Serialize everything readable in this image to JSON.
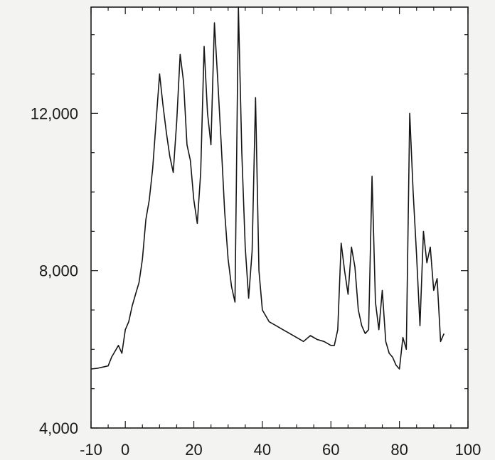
{
  "chart_data": {
    "type": "line",
    "title": "",
    "xlabel": "",
    "ylabel": "",
    "xlim": [
      -10,
      100
    ],
    "ylim": [
      4000,
      14700
    ],
    "x_ticks": [
      -10,
      0,
      20,
      40,
      60,
      80,
      100
    ],
    "x_tick_labels": [
      "-10",
      "0",
      "20",
      "40",
      "60",
      "80",
      "100"
    ],
    "y_ticks": [
      4000,
      8000,
      12000
    ],
    "y_tick_labels": [
      "4,000",
      "8,000",
      "12,000"
    ],
    "grid": false,
    "legend": "none",
    "line_color": "#151515",
    "series": [
      {
        "points": [
          [
            -10,
            5500
          ],
          [
            -8,
            5520
          ],
          [
            -6,
            5560
          ],
          [
            -5,
            5580
          ],
          [
            -4,
            5800
          ],
          [
            -3,
            5950
          ],
          [
            -2,
            6100
          ],
          [
            -1,
            5900
          ],
          [
            0,
            6500
          ],
          [
            1,
            6700
          ],
          [
            2,
            7100
          ],
          [
            3,
            7400
          ],
          [
            4,
            7700
          ],
          [
            5,
            8300
          ],
          [
            6,
            9300
          ],
          [
            7,
            9800
          ],
          [
            8,
            10600
          ],
          [
            9,
            11800
          ],
          [
            10,
            13000
          ],
          [
            11,
            12200
          ],
          [
            12,
            11500
          ],
          [
            13,
            10900
          ],
          [
            14,
            10500
          ],
          [
            15,
            11800
          ],
          [
            16,
            13500
          ],
          [
            17,
            12800
          ],
          [
            18,
            11200
          ],
          [
            19,
            10800
          ],
          [
            20,
            9800
          ],
          [
            21,
            9200
          ],
          [
            22,
            10500
          ],
          [
            23,
            13700
          ],
          [
            24,
            12000
          ],
          [
            25,
            11200
          ],
          [
            26,
            14300
          ],
          [
            27,
            12800
          ],
          [
            28,
            11200
          ],
          [
            29,
            9500
          ],
          [
            30,
            8300
          ],
          [
            31,
            7600
          ],
          [
            32,
            7200
          ],
          [
            33,
            14700
          ],
          [
            34,
            11000
          ],
          [
            35,
            8600
          ],
          [
            36,
            7300
          ],
          [
            37,
            8500
          ],
          [
            38,
            12400
          ],
          [
            39,
            8000
          ],
          [
            40,
            7000
          ],
          [
            42,
            6700
          ],
          [
            44,
            6600
          ],
          [
            46,
            6500
          ],
          [
            48,
            6400
          ],
          [
            50,
            6300
          ],
          [
            52,
            6200
          ],
          [
            54,
            6350
          ],
          [
            56,
            6250
          ],
          [
            58,
            6200
          ],
          [
            60,
            6100
          ],
          [
            61,
            6100
          ],
          [
            62,
            6500
          ],
          [
            63,
            8700
          ],
          [
            64,
            8000
          ],
          [
            65,
            7400
          ],
          [
            66,
            8600
          ],
          [
            67,
            8100
          ],
          [
            68,
            7000
          ],
          [
            69,
            6600
          ],
          [
            70,
            6400
          ],
          [
            71,
            6500
          ],
          [
            72,
            10400
          ],
          [
            73,
            7200
          ],
          [
            74,
            6500
          ],
          [
            75,
            7500
          ],
          [
            76,
            6200
          ],
          [
            77,
            5900
          ],
          [
            78,
            5800
          ],
          [
            79,
            5600
          ],
          [
            80,
            5500
          ],
          [
            81,
            6300
          ],
          [
            82,
            6000
          ],
          [
            83,
            12000
          ],
          [
            84,
            10000
          ],
          [
            85,
            8400
          ],
          [
            86,
            6600
          ],
          [
            87,
            9000
          ],
          [
            88,
            8200
          ],
          [
            89,
            8600
          ],
          [
            90,
            7500
          ],
          [
            91,
            7800
          ],
          [
            92,
            6200
          ],
          [
            93,
            6400
          ]
        ]
      }
    ]
  }
}
